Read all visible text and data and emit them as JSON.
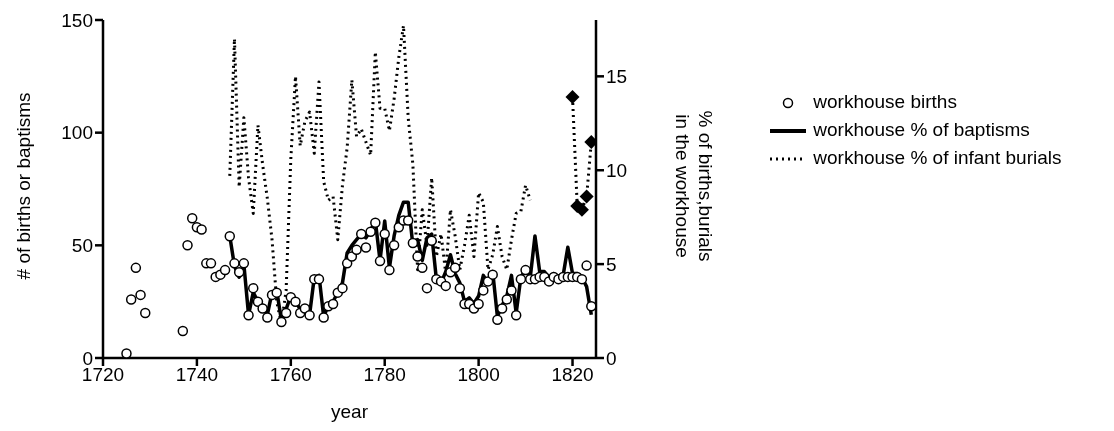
{
  "chart_data": {
    "type": "line",
    "xlabel": "year",
    "ylabel": "# of births or baptisms",
    "y2label": "% of births,burials\nin the workhouse",
    "xlim": [
      1720,
      1825
    ],
    "xticks": [
      1720,
      1740,
      1760,
      1780,
      1800,
      1820
    ],
    "ylim": [
      0,
      150
    ],
    "yticks": [
      0,
      50,
      100,
      150
    ],
    "y2lim": [
      0,
      18
    ],
    "y2ticks": [
      0,
      5,
      10,
      15
    ],
    "legend": "right",
    "series": [
      {
        "name": "workhouse births",
        "type": "scatter",
        "marker": "circle",
        "color": "#000000",
        "x": [
          1725,
          1726,
          1727,
          1728,
          1729,
          1737,
          1738,
          1739,
          1740,
          1741,
          1742,
          1743,
          1744,
          1745,
          1746,
          1747,
          1748,
          1749,
          1750,
          1751,
          1752,
          1753,
          1754,
          1755,
          1756,
          1757,
          1758,
          1759,
          1760,
          1761,
          1762,
          1763,
          1764,
          1765,
          1766,
          1767,
          1768,
          1769,
          1770,
          1771,
          1772,
          1773,
          1774,
          1775,
          1776,
          1777,
          1778,
          1779,
          1780,
          1781,
          1782,
          1783,
          1784,
          1785,
          1786,
          1787,
          1788,
          1789,
          1790,
          1791,
          1792,
          1793,
          1794,
          1795,
          1796,
          1797,
          1798,
          1799,
          1800,
          1801,
          1802,
          1803,
          1804,
          1805,
          1806,
          1807,
          1808,
          1809,
          1810,
          1811,
          1812,
          1813,
          1814,
          1815,
          1816,
          1817,
          1818,
          1819,
          1820,
          1821,
          1822,
          1823,
          1824
        ],
        "values": [
          2,
          26,
          40,
          28,
          20,
          12,
          50,
          62,
          58,
          57,
          42,
          42,
          36,
          37,
          39,
          54,
          42,
          38,
          42,
          19,
          31,
          25,
          22,
          18,
          28,
          29,
          16,
          20,
          27,
          25,
          20,
          22,
          19,
          35,
          35,
          18,
          23,
          24,
          29,
          31,
          42,
          45,
          48,
          55,
          49,
          56,
          60,
          43,
          55,
          39,
          50,
          58,
          61,
          61,
          51,
          45,
          40,
          31,
          52,
          35,
          34,
          32,
          38,
          40,
          31,
          24,
          24,
          22,
          24,
          30,
          34,
          37,
          17,
          22,
          26,
          30,
          19,
          35,
          39,
          35,
          35,
          36,
          36,
          34,
          36,
          35,
          36,
          36,
          36,
          36,
          35,
          41,
          23
        ]
      },
      {
        "name": "workhouse % of baptisms",
        "type": "line",
        "axis": "y2",
        "line_style": "solid",
        "marker": "none",
        "color": "#000000",
        "x": [
          1747,
          1748,
          1749,
          1750,
          1751,
          1752,
          1753,
          1754,
          1755,
          1756,
          1757,
          1758,
          1759,
          1760,
          1761,
          1762,
          1763,
          1764,
          1765,
          1766,
          1767,
          1768,
          1769,
          1770,
          1771,
          1772,
          1773,
          1774,
          1775,
          1776,
          1777,
          1778,
          1779,
          1780,
          1781,
          1782,
          1783,
          1784,
          1785,
          1786,
          1787,
          1788,
          1789,
          1790,
          1791,
          1792,
          1793,
          1794,
          1795,
          1796,
          1797,
          1798,
          1799,
          1800,
          1801,
          1802,
          1803,
          1804,
          1805,
          1806,
          1807,
          1808,
          1809,
          1810,
          1811,
          1812,
          1813,
          1814,
          1815,
          1816,
          1817,
          1818,
          1819,
          1820,
          1821,
          1822,
          1823,
          1824
        ],
        "values": [
          6.5,
          4.9,
          4.3,
          5.0,
          2.3,
          3.5,
          3.0,
          2.8,
          2.3,
          3.5,
          3.6,
          2.0,
          2.6,
          3.3,
          3.0,
          2.6,
          2.7,
          2.3,
          4.3,
          4.4,
          2.2,
          2.8,
          3.0,
          3.5,
          4.0,
          5.6,
          6.0,
          6.3,
          6.6,
          6.4,
          6.8,
          7.3,
          5.2,
          7.3,
          4.8,
          6.5,
          7.6,
          8.3,
          8.3,
          6.0,
          6.3,
          5.2,
          6.4,
          6.6,
          4.2,
          4.0,
          4.6,
          5.5,
          4.5,
          4.0,
          3.0,
          3.2,
          2.9,
          3.3,
          4.4,
          4.0,
          4.6,
          2.2,
          2.8,
          3.3,
          4.4,
          2.4,
          4.3,
          4.7,
          4.3,
          6.5,
          4.6,
          4.6,
          4.3,
          4.5,
          4.3,
          4.4,
          5.9,
          4.5,
          4.5,
          4.3,
          3.8,
          2.3
        ]
      },
      {
        "name": "workhouse % of infant burials",
        "type": "line",
        "axis": "y2",
        "line_style": "dotted",
        "marker": "none",
        "color": "#000000",
        "x": [
          1747,
          1748,
          1749,
          1750,
          1751,
          1752,
          1753,
          1754,
          1755,
          1756,
          1757,
          1758,
          1759,
          1760,
          1761,
          1762,
          1763,
          1764,
          1765,
          1766,
          1767,
          1768,
          1769,
          1770,
          1771,
          1772,
          1773,
          1774,
          1775,
          1776,
          1777,
          1778,
          1779,
          1780,
          1781,
          1782,
          1783,
          1784,
          1785,
          1786,
          1787,
          1788,
          1789,
          1790,
          1791,
          1792,
          1793,
          1794,
          1795,
          1796,
          1797,
          1798,
          1799,
          1800,
          1801,
          1802,
          1803,
          1804,
          1805,
          1806,
          1807,
          1808,
          1809,
          1810,
          1811
        ],
        "values": [
          9.7,
          17.0,
          9.1,
          12.8,
          9.6,
          7.7,
          12.4,
          10.3,
          8.5,
          6.3,
          3.0,
          1.8,
          3.6,
          10.6,
          15.0,
          11.3,
          12.6,
          13.1,
          10.9,
          14.7,
          9.4,
          8.4,
          8.6,
          6.3,
          9.2,
          11.2,
          14.8,
          11.8,
          12.2,
          11.5,
          10.8,
          16.3,
          13.3,
          13.3,
          12.1,
          13.8,
          16.0,
          17.7,
          12.8,
          10.3,
          4.7,
          7.9,
          6.0,
          9.6,
          5.4,
          6.6,
          4.5,
          7.9,
          6.5,
          4.7,
          6.0,
          7.6,
          5.4,
          8.8,
          8.3,
          4.7,
          5.5,
          7.0,
          5.4,
          4.7,
          6.3,
          7.7,
          7.8,
          9.2,
          8.4
        ]
      },
      {
        "type": "line",
        "axis": "y2",
        "line_style": "dotted",
        "marker": "diamond",
        "color": "#000000",
        "x": [
          1820,
          1821,
          1822,
          1823,
          1824
        ],
        "values": [
          13.9,
          8.1,
          7.9,
          8.6,
          11.5
        ]
      }
    ]
  }
}
